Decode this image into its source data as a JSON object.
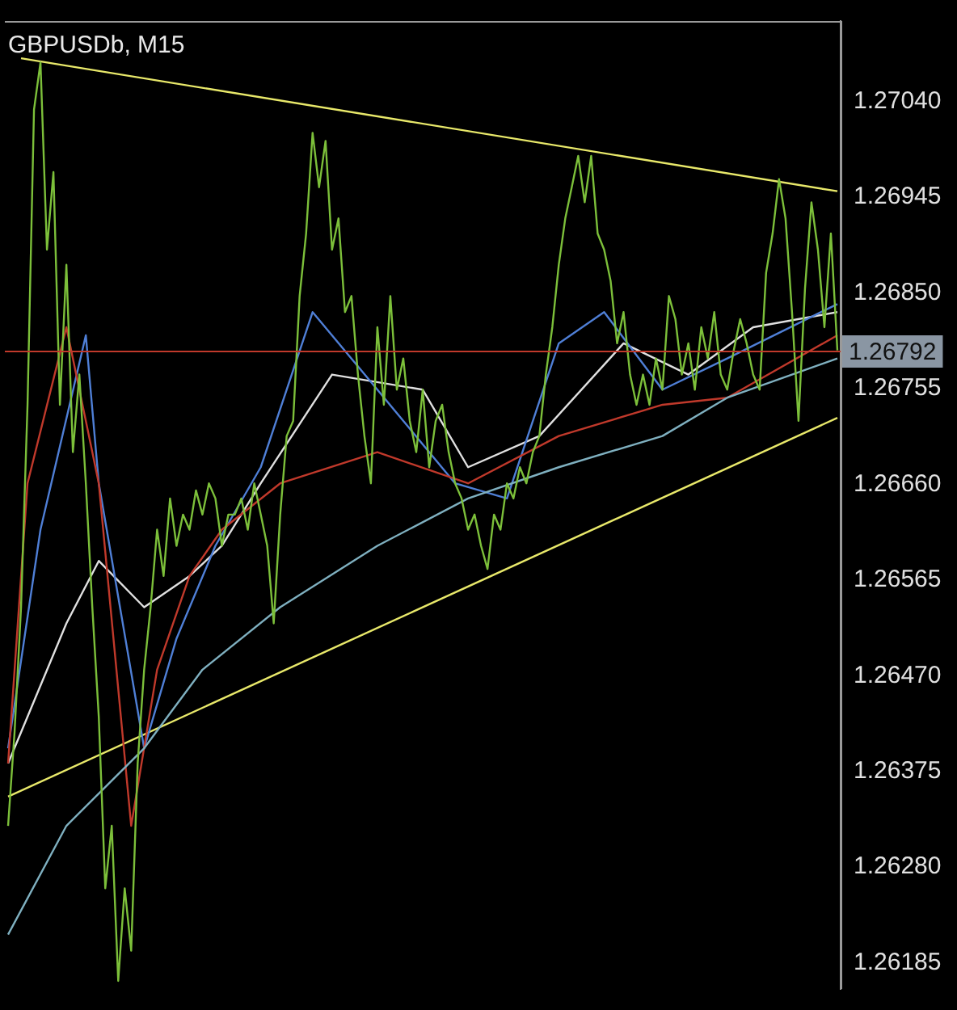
{
  "chart_data": {
    "type": "line",
    "title": "GBPUSDb, M15",
    "categories": [
      null,
      null,
      null,
      null,
      null,
      null,
      null,
      null,
      null,
      null,
      null,
      null,
      null,
      null,
      null,
      null,
      null,
      null,
      null,
      null,
      null,
      null,
      null,
      null,
      null,
      null,
      null,
      null,
      null,
      null,
      null,
      null,
      null,
      null,
      null,
      null,
      null,
      null,
      null,
      null,
      null,
      null,
      null,
      null,
      null,
      null,
      null,
      null,
      null,
      null,
      null,
      null,
      null,
      null,
      null,
      null,
      null,
      null,
      null,
      null,
      null,
      null,
      null,
      null,
      null,
      null,
      null,
      null,
      null,
      null,
      null,
      null,
      null,
      null,
      null,
      null,
      null,
      null,
      null,
      null,
      null,
      null,
      null,
      null,
      null,
      null,
      null,
      null,
      null,
      null,
      null,
      null,
      null,
      null,
      null,
      null,
      null,
      null,
      null,
      null,
      null,
      null,
      null,
      null,
      null,
      null,
      null,
      null,
      null,
      null,
      null,
      null,
      null,
      null,
      null,
      null,
      null,
      null,
      null,
      null,
      null,
      null,
      null,
      null,
      null,
      null,
      null,
      null,
      null
    ],
    "ylim": [
      1.26159,
      1.2712
    ],
    "yticks": [
      {
        "value": 1.2704,
        "label": "1.27040"
      },
      {
        "value": 1.26945,
        "label": "1.26945"
      },
      {
        "value": 1.2685,
        "label": "1.26850"
      },
      {
        "value": 1.26755,
        "label": "1.26755"
      },
      {
        "value": 1.2666,
        "label": "1.26660"
      },
      {
        "value": 1.26565,
        "label": "1.26565"
      },
      {
        "value": 1.2647,
        "label": "1.26470"
      },
      {
        "value": 1.26375,
        "label": "1.26375"
      },
      {
        "value": 1.2628,
        "label": "1.26280"
      },
      {
        "value": 1.26185,
        "label": "1.26185"
      }
    ],
    "tick_labels": "y",
    "legend": false,
    "marker": "none",
    "line_style": "solid",
    "ref_lines": [
      {
        "axis": "y",
        "value": 1.26792,
        "label": "1.26792",
        "color": "#c0392b"
      }
    ],
    "series": [
      {
        "color": "#7cbf3a",
        "values": [
          1.26321,
          1.26414,
          1.26538,
          1.26739,
          1.27032,
          1.27079,
          1.26893,
          1.2697,
          1.26739,
          1.26878,
          1.26692,
          1.26769,
          1.26661,
          1.26538,
          1.26429,
          1.26259,
          1.26321,
          1.26167,
          1.26259,
          1.26197,
          1.26383,
          1.26476,
          1.26538,
          1.26615,
          1.26569,
          1.26646,
          1.26599,
          1.2663,
          1.26615,
          1.26654,
          1.2663,
          1.26661,
          1.26646,
          1.26599,
          1.2663,
          1.2663,
          1.26646,
          1.26615,
          1.26661,
          1.2663,
          1.26599,
          1.26522,
          1.2663,
          1.26708,
          1.26723,
          1.26847,
          1.26909,
          1.27009,
          1.26955,
          1.27001,
          1.26893,
          1.26924,
          1.26831,
          1.26847,
          1.26769,
          1.26708,
          1.26661,
          1.26816,
          1.26739,
          1.26847,
          1.26754,
          1.26785,
          1.26723,
          1.26692,
          1.26754,
          1.26677,
          1.26723,
          1.26739,
          1.26692,
          1.26661,
          1.26646,
          1.26615,
          1.2663,
          1.26599,
          1.26576,
          1.2663,
          1.26615,
          1.26661,
          1.26646,
          1.26677,
          1.26661,
          1.26692,
          1.26708,
          1.26769,
          1.26816,
          1.26878,
          1.26924,
          1.26955,
          1.26986,
          1.2694,
          1.26986,
          1.26909,
          1.26893,
          1.26862,
          1.268,
          1.26831,
          1.26769,
          1.26739,
          1.26769,
          1.26739,
          1.26785,
          1.26754,
          1.26847,
          1.26824,
          1.26769,
          1.268,
          1.26754,
          1.26816,
          1.26785,
          1.26831,
          1.26769,
          1.26754,
          1.26793,
          1.26824,
          1.268,
          1.26769,
          1.26754,
          1.2687,
          1.26909,
          1.26963,
          1.26924,
          1.26831,
          1.26723,
          1.26854,
          1.2694,
          1.26893,
          1.26816,
          1.26909,
          1.26793
        ]
      },
      {
        "color": "#7fb0c0",
        "values": [
          1.26213,
          null,
          null,
          null,
          null,
          null,
          null,
          null,
          null,
          1.26321,
          null,
          null,
          null,
          null,
          null,
          null,
          null,
          null,
          null,
          null,
          null,
          1.26398,
          null,
          null,
          null,
          null,
          null,
          null,
          null,
          null,
          1.26476,
          null,
          null,
          null,
          null,
          null,
          null,
          null,
          null,
          null,
          null,
          null,
          1.26538,
          null,
          null,
          null,
          null,
          null,
          null,
          null,
          null,
          null,
          null,
          null,
          null,
          null,
          null,
          1.26599,
          null,
          null,
          null,
          null,
          null,
          null,
          null,
          null,
          null,
          null,
          null,
          null,
          null,
          1.26646,
          null,
          null,
          null,
          null,
          null,
          null,
          null,
          null,
          null,
          null,
          null,
          null,
          null,
          1.26677,
          null,
          null,
          null,
          null,
          null,
          null,
          null,
          null,
          null,
          null,
          null,
          null,
          null,
          null,
          null,
          1.26708,
          null,
          null,
          null,
          null,
          null,
          null,
          null,
          null,
          null,
          1.26746,
          null,
          null,
          null,
          null,
          null,
          null,
          null,
          null,
          null,
          null,
          null,
          null,
          null,
          null,
          null,
          null,
          1.26785
        ]
      },
      {
        "color": "#c0392b",
        "values": [
          1.26383,
          null,
          null,
          1.26661,
          null,
          null,
          null,
          null,
          null,
          1.26816,
          null,
          null,
          null,
          null,
          1.26661,
          null,
          null,
          null,
          null,
          1.26321,
          null,
          null,
          null,
          1.26476,
          null,
          null,
          null,
          null,
          1.26569,
          null,
          null,
          null,
          null,
          1.26615,
          null,
          null,
          null,
          null,
          null,
          null,
          null,
          null,
          1.26661,
          null,
          null,
          null,
          null,
          null,
          null,
          null,
          null,
          null,
          null,
          null,
          null,
          null,
          null,
          1.26692,
          null,
          null,
          null,
          null,
          null,
          null,
          null,
          null,
          null,
          null,
          null,
          null,
          null,
          1.26661,
          null,
          null,
          null,
          null,
          null,
          null,
          null,
          null,
          null,
          null,
          null,
          null,
          null,
          1.26708,
          null,
          null,
          null,
          null,
          null,
          null,
          null,
          null,
          null,
          null,
          null,
          null,
          null,
          null,
          null,
          1.26739,
          null,
          null,
          null,
          null,
          null,
          null,
          null,
          null,
          null,
          1.26746,
          null,
          null,
          null,
          null,
          null,
          null,
          null,
          null,
          null,
          null,
          null,
          null,
          null,
          null,
          null,
          null,
          1.26808
        ]
      },
      {
        "color": "#4f7fd6",
        "values": [
          1.26398,
          null,
          null,
          null,
          null,
          1.26615,
          null,
          null,
          null,
          null,
          null,
          null,
          1.26808,
          null,
          1.26661,
          null,
          null,
          null,
          null,
          null,
          null,
          1.26398,
          null,
          null,
          null,
          null,
          1.26507,
          null,
          null,
          null,
          null,
          null,
          1.26599,
          null,
          null,
          null,
          null,
          null,
          null,
          1.26677,
          null,
          null,
          null,
          null,
          null,
          null,
          null,
          1.26831,
          null,
          null,
          null,
          null,
          null,
          null,
          null,
          null,
          null,
          1.26754,
          null,
          null,
          null,
          null,
          null,
          null,
          null,
          null,
          null,
          null,
          null,
          1.26661,
          null,
          null,
          null,
          null,
          null,
          null,
          null,
          1.26646,
          null,
          null,
          null,
          null,
          null,
          null,
          null,
          1.268,
          null,
          null,
          null,
          null,
          null,
          null,
          1.26831,
          null,
          null,
          null,
          null,
          null,
          null,
          null,
          null,
          1.26754,
          null,
          null,
          null,
          null,
          null,
          null,
          null,
          null,
          null,
          1.26785,
          null,
          null,
          null,
          null,
          null,
          null,
          null,
          null,
          null,
          null,
          null,
          null,
          null,
          null,
          null,
          null,
          1.26839
        ]
      },
      {
        "color": "#e0e0e0",
        "values": [
          1.26383,
          null,
          null,
          null,
          null,
          null,
          null,
          null,
          null,
          1.26522,
          null,
          null,
          null,
          null,
          1.26584,
          null,
          null,
          null,
          null,
          null,
          null,
          1.26538,
          null,
          null,
          null,
          null,
          null,
          null,
          1.26569,
          null,
          null,
          null,
          null,
          1.26599,
          null,
          null,
          null,
          null,
          null,
          1.26661,
          null,
          null,
          null,
          null,
          null,
          null,
          null,
          null,
          null,
          null,
          1.26769,
          null,
          null,
          null,
          null,
          null,
          null,
          null,
          null,
          null,
          null,
          null,
          null,
          null,
          1.26754,
          null,
          null,
          null,
          null,
          null,
          null,
          1.26677,
          null,
          null,
          null,
          null,
          null,
          null,
          null,
          null,
          null,
          null,
          1.26708,
          null,
          null,
          null,
          null,
          null,
          null,
          null,
          null,
          null,
          null,
          null,
          null,
          1.268,
          null,
          null,
          null,
          null,
          null,
          null,
          null,
          null,
          null,
          1.26769,
          null,
          null,
          null,
          null,
          null,
          null,
          null,
          null,
          null,
          1.26816,
          null,
          null,
          null,
          null,
          null,
          null,
          null,
          null,
          null,
          null,
          null,
          null,
          1.26831
        ]
      },
      {
        "color": "#e8e86a",
        "values": [
          null,
          null,
          1.27083,
          null,
          null,
          null,
          null,
          null,
          null,
          null,
          null,
          null,
          null,
          null,
          null,
          null,
          null,
          null,
          null,
          null,
          null,
          null,
          null,
          null,
          null,
          null,
          null,
          null,
          null,
          null,
          null,
          null,
          null,
          null,
          null,
          null,
          null,
          null,
          null,
          null,
          null,
          null,
          null,
          null,
          null,
          null,
          null,
          null,
          null,
          null,
          null,
          null,
          null,
          null,
          null,
          null,
          null,
          null,
          null,
          null,
          null,
          null,
          null,
          null,
          null,
          null,
          null,
          null,
          null,
          null,
          null,
          null,
          null,
          null,
          null,
          null,
          null,
          null,
          null,
          null,
          null,
          null,
          null,
          null,
          null,
          null,
          null,
          null,
          null,
          null,
          null,
          null,
          null,
          null,
          null,
          null,
          null,
          null,
          null,
          null,
          null,
          null,
          null,
          null,
          null,
          null,
          null,
          null,
          null,
          null,
          null,
          null,
          null,
          null,
          null,
          null,
          null,
          null,
          null,
          null,
          null,
          null,
          null,
          null,
          null,
          null,
          null,
          null,
          1.26951
        ]
      },
      {
        "color": "#e8e86a",
        "values": [
          1.2635,
          null,
          null,
          null,
          null,
          null,
          null,
          null,
          null,
          null,
          null,
          null,
          null,
          null,
          null,
          null,
          null,
          null,
          null,
          null,
          null,
          null,
          null,
          null,
          null,
          null,
          null,
          null,
          null,
          null,
          null,
          null,
          null,
          null,
          null,
          null,
          null,
          null,
          null,
          null,
          null,
          null,
          null,
          null,
          null,
          null,
          null,
          null,
          null,
          null,
          null,
          null,
          null,
          null,
          null,
          null,
          null,
          null,
          null,
          null,
          null,
          null,
          null,
          null,
          null,
          null,
          null,
          null,
          null,
          null,
          null,
          null,
          null,
          null,
          null,
          null,
          null,
          null,
          null,
          null,
          null,
          null,
          null,
          null,
          null,
          null,
          null,
          null,
          null,
          null,
          null,
          null,
          null,
          null,
          null,
          null,
          null,
          null,
          null,
          null,
          null,
          null,
          null,
          null,
          null,
          null,
          null,
          null,
          null,
          null,
          null,
          null,
          null,
          null,
          null,
          null,
          null,
          null,
          null,
          null,
          null,
          null,
          null,
          null,
          null,
          null,
          null,
          null,
          1.26726
        ]
      }
    ]
  }
}
